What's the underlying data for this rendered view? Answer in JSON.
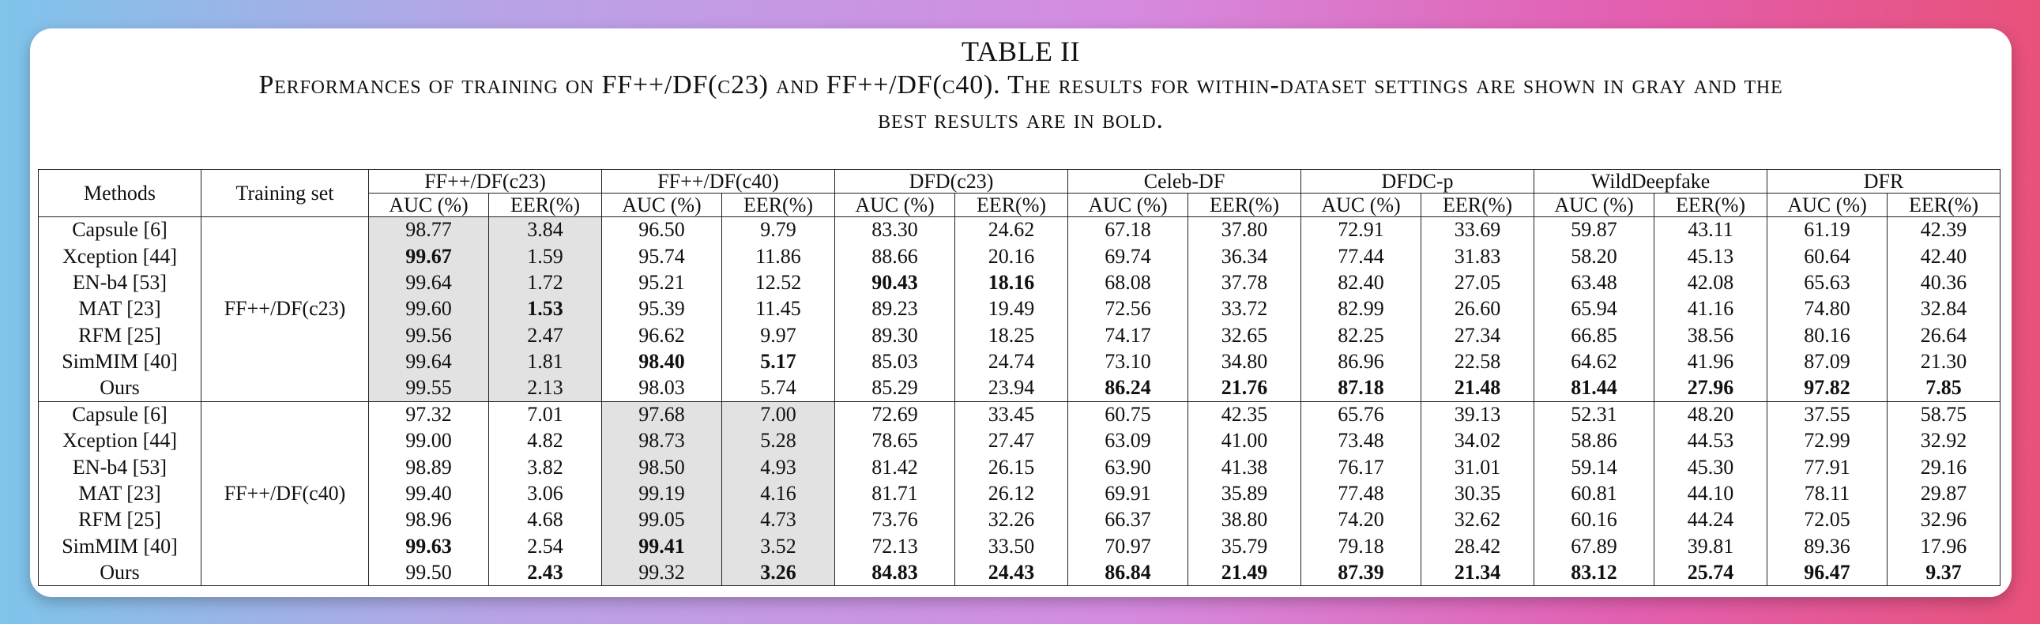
{
  "table_label": "TABLE II",
  "caption_line1": "Performances of training on FF++/DF(c23) and FF++/DF(c40). The results for within-dataset settings are shown in gray and the",
  "caption_line2": "best results are in bold.",
  "header": {
    "methods": "Methods",
    "training_set": "Training set",
    "datasets": [
      "FF++/DF(c23)",
      "FF++/DF(c40)",
      "DFD(c23)",
      "Celeb-DF",
      "DFDC-p",
      "WildDeepfake",
      "DFR"
    ],
    "auc": "AUC (%)",
    "eer": "EER(%)"
  },
  "colors": {
    "gray_cell": "#e2e2e2",
    "bold_marks": "best result"
  },
  "groups": [
    {
      "training_set": "FF++/DF(c23)",
      "gray_cols": [
        0,
        1
      ],
      "rows": [
        {
          "method": "Capsule [6]",
          "values": [
            "98.77",
            "3.84",
            "96.50",
            "9.79",
            "83.30",
            "24.62",
            "67.18",
            "37.80",
            "72.91",
            "33.69",
            "59.87",
            "43.11",
            "61.19",
            "42.39"
          ],
          "bold": []
        },
        {
          "method": "Xception [44]",
          "values": [
            "99.67",
            "1.59",
            "95.74",
            "11.86",
            "88.66",
            "20.16",
            "69.74",
            "36.34",
            "77.44",
            "31.83",
            "58.20",
            "45.13",
            "60.64",
            "42.40"
          ],
          "bold": [
            0
          ]
        },
        {
          "method": "EN-b4 [53]",
          "values": [
            "99.64",
            "1.72",
            "95.21",
            "12.52",
            "90.43",
            "18.16",
            "68.08",
            "37.78",
            "82.40",
            "27.05",
            "63.48",
            "42.08",
            "65.63",
            "40.36"
          ],
          "bold": [
            4,
            5
          ]
        },
        {
          "method": "MAT [23]",
          "values": [
            "99.60",
            "1.53",
            "95.39",
            "11.45",
            "89.23",
            "19.49",
            "72.56",
            "33.72",
            "82.99",
            "26.60",
            "65.94",
            "41.16",
            "74.80",
            "32.84"
          ],
          "bold": [
            1
          ]
        },
        {
          "method": "RFM [25]",
          "values": [
            "99.56",
            "2.47",
            "96.62",
            "9.97",
            "89.30",
            "18.25",
            "74.17",
            "32.65",
            "82.25",
            "27.34",
            "66.85",
            "38.56",
            "80.16",
            "26.64"
          ],
          "bold": []
        },
        {
          "method": "SimMIM [40]",
          "values": [
            "99.64",
            "1.81",
            "98.40",
            "5.17",
            "85.03",
            "24.74",
            "73.10",
            "34.80",
            "86.96",
            "22.58",
            "64.62",
            "41.96",
            "87.09",
            "21.30"
          ],
          "bold": [
            2,
            3
          ]
        },
        {
          "method": "Ours",
          "values": [
            "99.55",
            "2.13",
            "98.03",
            "5.74",
            "85.29",
            "23.94",
            "86.24",
            "21.76",
            "87.18",
            "21.48",
            "81.44",
            "27.96",
            "97.82",
            "7.85"
          ],
          "bold": [
            6,
            7,
            8,
            9,
            10,
            11,
            12,
            13
          ]
        }
      ]
    },
    {
      "training_set": "FF++/DF(c40)",
      "gray_cols": [
        2,
        3
      ],
      "rows": [
        {
          "method": "Capsule [6]",
          "values": [
            "97.32",
            "7.01",
            "97.68",
            "7.00",
            "72.69",
            "33.45",
            "60.75",
            "42.35",
            "65.76",
            "39.13",
            "52.31",
            "48.20",
            "37.55",
            "58.75"
          ],
          "bold": []
        },
        {
          "method": "Xception [44]",
          "values": [
            "99.00",
            "4.82",
            "98.73",
            "5.28",
            "78.65",
            "27.47",
            "63.09",
            "41.00",
            "73.48",
            "34.02",
            "58.86",
            "44.53",
            "72.99",
            "32.92"
          ],
          "bold": []
        },
        {
          "method": "EN-b4 [53]",
          "values": [
            "98.89",
            "3.82",
            "98.50",
            "4.93",
            "81.42",
            "26.15",
            "63.90",
            "41.38",
            "76.17",
            "31.01",
            "59.14",
            "45.30",
            "77.91",
            "29.16"
          ],
          "bold": []
        },
        {
          "method": "MAT [23]",
          "values": [
            "99.40",
            "3.06",
            "99.19",
            "4.16",
            "81.71",
            "26.12",
            "69.91",
            "35.89",
            "77.48",
            "30.35",
            "60.81",
            "44.10",
            "78.11",
            "29.87"
          ],
          "bold": []
        },
        {
          "method": "RFM [25]",
          "values": [
            "98.96",
            "4.68",
            "99.05",
            "4.73",
            "73.76",
            "32.26",
            "66.37",
            "38.80",
            "74.20",
            "32.62",
            "60.16",
            "44.24",
            "72.05",
            "32.96"
          ],
          "bold": []
        },
        {
          "method": "SimMIM [40]",
          "values": [
            "99.63",
            "2.54",
            "99.41",
            "3.52",
            "72.13",
            "33.50",
            "70.97",
            "35.79",
            "79.18",
            "28.42",
            "67.89",
            "39.81",
            "89.36",
            "17.96"
          ],
          "bold": [
            0,
            2
          ]
        },
        {
          "method": "Ours",
          "values": [
            "99.50",
            "2.43",
            "99.32",
            "3.26",
            "84.83",
            "24.43",
            "86.84",
            "21.49",
            "87.39",
            "21.34",
            "83.12",
            "25.74",
            "96.47",
            "9.37"
          ],
          "bold": [
            1,
            3,
            4,
            5,
            6,
            7,
            8,
            9,
            10,
            11,
            12,
            13
          ]
        }
      ]
    }
  ]
}
